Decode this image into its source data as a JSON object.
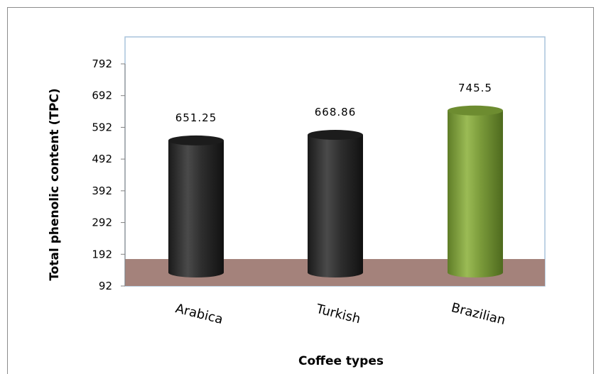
{
  "chart_data": {
    "type": "bar",
    "categories": [
      "Arabica",
      "Turkish",
      "Brazilian"
    ],
    "values": [
      651.25,
      668.86,
      745.5
    ],
    "data_labels": [
      "651.25",
      "668.86",
      "745.5"
    ],
    "xlabel": "Coffee types",
    "ylabel": "Total phenolic content (TPC)",
    "ylim": [
      92,
      842
    ],
    "yticks": [
      "92",
      "192",
      "292",
      "392",
      "492",
      "592",
      "692",
      "792"
    ],
    "grid": false,
    "legend": "none",
    "colors": {
      "bar_default": "#2b2b2b",
      "bar_highlight": "#7a9a3a",
      "floor": "#a4827b",
      "plot_border": "#a8c4dc"
    }
  }
}
